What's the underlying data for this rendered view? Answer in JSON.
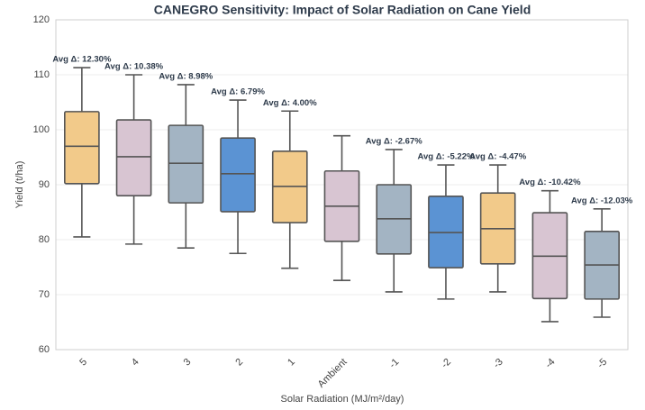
{
  "chart_data": {
    "type": "box",
    "title": "CANEGRO Sensitivity: Impact of Solar Radiation on Cane Yield",
    "x_label": "Solar Radiation (MJ/m²/day)",
    "y_label": "Yield (t/ha)",
    "categories": [
      "5",
      "4",
      "3",
      "2",
      "1",
      "Ambient",
      "-1",
      "-2",
      "-3",
      "-4",
      "-5"
    ],
    "boxes": [
      {
        "whislo": 80.5,
        "q1": 90.2,
        "med": 97.0,
        "q3": 103.3,
        "whishi": 111.3
      },
      {
        "whislo": 79.2,
        "q1": 88.0,
        "med": 95.1,
        "q3": 101.8,
        "whishi": 110.0
      },
      {
        "whislo": 78.5,
        "q1": 86.7,
        "med": 93.9,
        "q3": 100.8,
        "whishi": 108.2
      },
      {
        "whislo": 77.5,
        "q1": 85.1,
        "med": 92.0,
        "q3": 98.5,
        "whishi": 105.4
      },
      {
        "whislo": 74.8,
        "q1": 83.1,
        "med": 89.7,
        "q3": 96.1,
        "whishi": 103.4
      },
      {
        "whislo": 72.6,
        "q1": 79.7,
        "med": 86.1,
        "q3": 92.5,
        "whishi": 98.9
      },
      {
        "whislo": 70.5,
        "q1": 77.4,
        "med": 83.8,
        "q3": 90.0,
        "whishi": 96.4
      },
      {
        "whislo": 69.2,
        "q1": 74.9,
        "med": 81.3,
        "q3": 87.9,
        "whishi": 93.6
      },
      {
        "whislo": 70.5,
        "q1": 75.6,
        "med": 82.0,
        "q3": 88.5,
        "whishi": 93.6
      },
      {
        "whislo": 65.1,
        "q1": 69.3,
        "med": 77.0,
        "q3": 84.9,
        "whishi": 88.9
      },
      {
        "whislo": 65.9,
        "q1": 69.2,
        "med": 75.4,
        "q3": 81.5,
        "whishi": 85.6
      }
    ],
    "colors": [
      "#f2ca8a",
      "#d8c5d2",
      "#a3b4c3",
      "#5b93d3",
      "#f2ca8a",
      "#d8c5d2",
      "#a3b4c3",
      "#5b93d3",
      "#f2ca8a",
      "#d8c5d2",
      "#a3b4c3"
    ],
    "annotations": [
      "Avg Δ: 12.30%",
      "Avg Δ: 10.38%",
      "Avg Δ: 8.98%",
      "Avg Δ: 6.79%",
      "Avg Δ: 4.00%",
      null,
      "Avg Δ: -2.67%",
      "Avg Δ: -5.22%",
      "Avg Δ: -4.47%",
      "Avg Δ: -10.42%",
      "Avg Δ: -12.03%"
    ],
    "ylim": [
      60,
      120
    ],
    "yticks": [
      60,
      70,
      80,
      90,
      100,
      110,
      120
    ],
    "grid": true
  }
}
